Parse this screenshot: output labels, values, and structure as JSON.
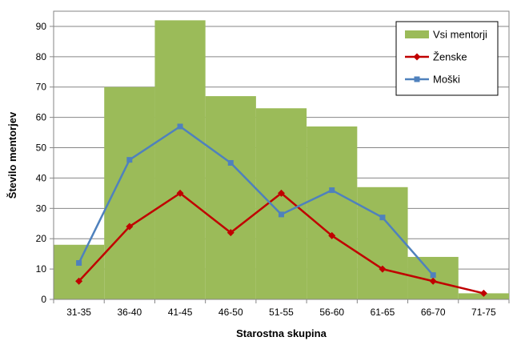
{
  "chart_data": {
    "type": "bar",
    "categories": [
      "31-35",
      "36-40",
      "41-45",
      "46-50",
      "51-55",
      "56-60",
      "61-65",
      "66-70",
      "71-75"
    ],
    "xlabel": "Starostna skupina",
    "ylabel": "Število mentorjev",
    "ylim": [
      0,
      95
    ],
    "yticks": [
      0,
      10,
      20,
      30,
      40,
      50,
      60,
      70,
      80,
      90
    ],
    "grid": true,
    "legend_position": "top-right",
    "series": [
      {
        "name": "Vsi mentorji",
        "kind": "bar",
        "color": "#9bbb59",
        "values": [
          18,
          70,
          92,
          67,
          63,
          57,
          37,
          14,
          2
        ]
      },
      {
        "name": "Ženske",
        "kind": "line",
        "marker": "diamond",
        "color": "#c00000",
        "values": [
          6,
          24,
          35,
          22,
          35,
          21,
          10,
          6,
          2
        ]
      },
      {
        "name": "Moški",
        "kind": "line",
        "marker": "square",
        "color": "#4f81bd",
        "values": [
          12,
          46,
          57,
          45,
          28,
          36,
          27,
          8,
          null
        ]
      }
    ]
  }
}
